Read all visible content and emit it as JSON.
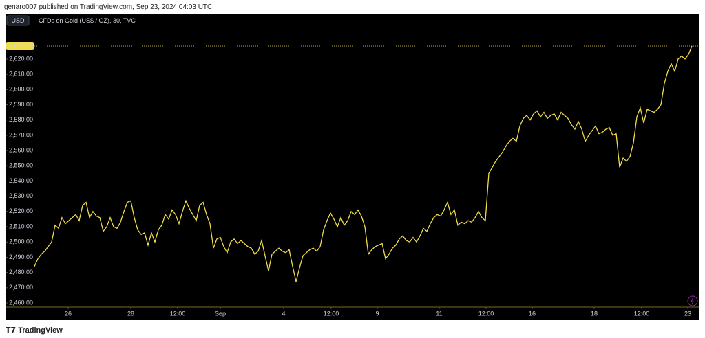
{
  "header": "genaro007 published on TradingView.com, Sep 23, 2024 04:03 UTC",
  "footer": "TradingView",
  "chart_data": {
    "type": "line",
    "title": "CFDs on Gold (US$ / OZ), 30, TVC",
    "currency": "USD",
    "series": [
      {
        "name": "Gold",
        "color": "#f2dc4a",
        "values": [
          2484,
          2489,
          2492,
          2494,
          2497,
          2500,
          2511,
          2509,
          2516,
          2512,
          2514,
          2516,
          2518,
          2514,
          2524,
          2526,
          2516,
          2520,
          2517,
          2516,
          2507,
          2510,
          2516,
          2510,
          2509,
          2513,
          2520,
          2526,
          2527,
          2516,
          2508,
          2505,
          2506,
          2498,
          2506,
          2500,
          2508,
          2511,
          2518,
          2515,
          2521,
          2518,
          2512,
          2520,
          2527,
          2522,
          2518,
          2514,
          2524,
          2526,
          2518,
          2512,
          2496,
          2502,
          2503,
          2497,
          2493,
          2500,
          2502,
          2499,
          2501,
          2499,
          2497,
          2496,
          2492,
          2494,
          2501,
          2491,
          2481,
          2492,
          2494,
          2496,
          2494,
          2493,
          2495,
          2484,
          2474,
          2483,
          2491,
          2493,
          2495,
          2496,
          2494,
          2497,
          2508,
          2514,
          2519,
          2515,
          2510,
          2516,
          2511,
          2514,
          2520,
          2518,
          2521,
          2517,
          2510,
          2492,
          2495,
          2497,
          2498,
          2499,
          2489,
          2492,
          2496,
          2498,
          2502,
          2504,
          2501,
          2500,
          2503,
          2500,
          2504,
          2509,
          2507,
          2512,
          2516,
          2518,
          2517,
          2521,
          2526,
          2518,
          2521,
          2511,
          2513,
          2512,
          2514,
          2513,
          2516,
          2520,
          2516,
          2514,
          2545,
          2549,
          2553,
          2556,
          2559,
          2563,
          2566,
          2568,
          2566,
          2576,
          2581,
          2583,
          2580,
          2584,
          2586,
          2582,
          2585,
          2581,
          2583,
          2584,
          2580,
          2585,
          2583,
          2581,
          2577,
          2574,
          2579,
          2574,
          2566,
          2570,
          2573,
          2576,
          2571,
          2572,
          2574,
          2575,
          2570,
          2571,
          2549,
          2555,
          2553,
          2556,
          2565,
          2582,
          2588,
          2578,
          2587,
          2586,
          2585,
          2587,
          2590,
          2604,
          2612,
          2617,
          2612,
          2620,
          2622,
          2620,
          2623,
          2628.53
        ]
      }
    ],
    "last_price": {
      "value": 2628.53,
      "label": "2,628.53"
    },
    "ylim": [
      2457.3,
      2649.7
    ],
    "yticks": [
      {
        "value": 2460,
        "label": "2,460.00"
      },
      {
        "value": 2470,
        "label": "2,470.00"
      },
      {
        "value": 2480,
        "label": "2,480.00"
      },
      {
        "value": 2490,
        "label": "2,490.00"
      },
      {
        "value": 2500,
        "label": "2,500.00"
      },
      {
        "value": 2510,
        "label": "2,510.00"
      },
      {
        "value": 2520,
        "label": "2,520.00"
      },
      {
        "value": 2530,
        "label": "2,530.00"
      },
      {
        "value": 2540,
        "label": "2,540.00"
      },
      {
        "value": 2550,
        "label": "2,550.00"
      },
      {
        "value": 2560,
        "label": "2,560.00"
      },
      {
        "value": 2570,
        "label": "2,570.00"
      },
      {
        "value": 2580,
        "label": "2,580.00"
      },
      {
        "value": 2590,
        "label": "2,590.00"
      },
      {
        "value": 2600,
        "label": "2,600.00"
      },
      {
        "value": 2610,
        "label": "2,610.00"
      },
      {
        "value": 2620,
        "label": "2,620.00"
      }
    ],
    "xlim": [
      -8.4,
      193.2
    ],
    "xticks": [
      {
        "value": 9.8,
        "label": "26"
      },
      {
        "value": 28,
        "label": "28"
      },
      {
        "value": 41.6,
        "label": "12:00"
      },
      {
        "value": 54,
        "label": "Sep"
      },
      {
        "value": 72.4,
        "label": "4"
      },
      {
        "value": 86.2,
        "label": "12:00"
      },
      {
        "value": 99.6,
        "label": "9"
      },
      {
        "value": 117.6,
        "label": "11"
      },
      {
        "value": 131.2,
        "label": "12:00"
      },
      {
        "value": 144.6,
        "label": "16"
      },
      {
        "value": 162.6,
        "label": "18"
      },
      {
        "value": 176.4,
        "label": "12:00"
      },
      {
        "value": 189.8,
        "label": "23"
      }
    ]
  }
}
